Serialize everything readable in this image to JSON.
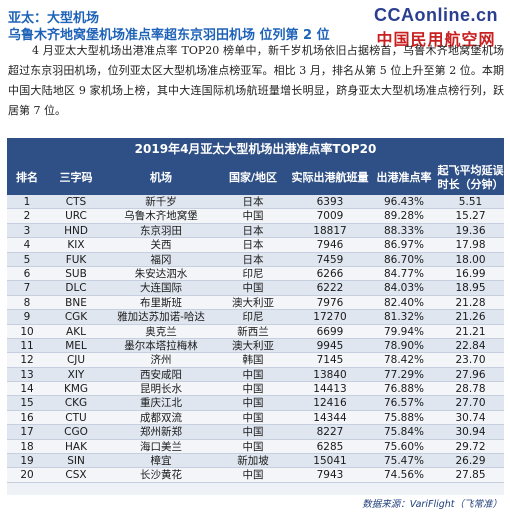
{
  "header": {
    "title_1": "亚太：大型机场",
    "title_2": "乌鲁木齐地窝堡机场准点率超东京羽田机场 位列第 2 位",
    "logo_1": "CCAonline.cn",
    "logo_2": "中国民用航空网"
  },
  "paragraph": "4 月亚太大型机场出港准点率 TOP20 榜单中，新千岁机场依旧占据榜首，乌鲁木齐地窝堡机场超过东京羽田机场，位列亚太区大型机场准点榜亚军。相比 3 月，排名从第 5 位上升至第 2 位。本期中国大陆地区 9 家机场上榜，其中大连国际机场航班量增长明显，跻身亚太大型机场准点榜行列，跃居第 7 位。",
  "table": {
    "title": "2019年4月亚太大型机场出港准点率TOP20",
    "columns": [
      "排名",
      "三字码",
      "机场",
      "国家/地区",
      "实际出港航班量",
      "出港准点率",
      "起飞平均延误时长（分钟）"
    ],
    "rows": [
      [
        "1",
        "CTS",
        "新千岁",
        "日本",
        "6393",
        "96.43%",
        "5.51"
      ],
      [
        "2",
        "URC",
        "乌鲁木齐地窝堡",
        "中国",
        "7009",
        "89.28%",
        "15.27"
      ],
      [
        "3",
        "HND",
        "东京羽田",
        "日本",
        "18817",
        "88.33%",
        "19.36"
      ],
      [
        "4",
        "KIX",
        "关西",
        "日本",
        "7946",
        "86.97%",
        "17.98"
      ],
      [
        "5",
        "FUK",
        "福冈",
        "日本",
        "7459",
        "86.70%",
        "18.00"
      ],
      [
        "6",
        "SUB",
        "朱安达泗水",
        "印尼",
        "6266",
        "84.77%",
        "16.99"
      ],
      [
        "7",
        "DLC",
        "大连国际",
        "中国",
        "6222",
        "84.03%",
        "18.95"
      ],
      [
        "8",
        "BNE",
        "布里斯班",
        "澳大利亚",
        "7976",
        "82.40%",
        "21.28"
      ],
      [
        "9",
        "CGK",
        "雅加达苏加诺-哈达",
        "印尼",
        "17270",
        "81.32%",
        "21.26"
      ],
      [
        "10",
        "AKL",
        "奥克兰",
        "新西兰",
        "6699",
        "79.94%",
        "21.21"
      ],
      [
        "11",
        "MEL",
        "墨尔本塔拉梅林",
        "澳大利亚",
        "9945",
        "78.90%",
        "22.84"
      ],
      [
        "12",
        "CJU",
        "济州",
        "韩国",
        "7145",
        "78.42%",
        "23.70"
      ],
      [
        "13",
        "XIY",
        "西安咸阳",
        "中国",
        "13840",
        "77.29%",
        "27.96"
      ],
      [
        "14",
        "KMG",
        "昆明长水",
        "中国",
        "14413",
        "76.88%",
        "28.78"
      ],
      [
        "15",
        "CKG",
        "重庆江北",
        "中国",
        "12416",
        "76.57%",
        "27.70"
      ],
      [
        "16",
        "CTU",
        "成都双流",
        "中国",
        "14344",
        "75.88%",
        "30.74"
      ],
      [
        "17",
        "CGO",
        "郑州新郑",
        "中国",
        "8227",
        "75.84%",
        "30.94"
      ],
      [
        "18",
        "HAK",
        "海口美兰",
        "中国",
        "6285",
        "75.60%",
        "29.72"
      ],
      [
        "19",
        "SIN",
        "樟宜",
        "新加坡",
        "15041",
        "75.47%",
        "26.29"
      ],
      [
        "20",
        "CSX",
        "长沙黄花",
        "中国",
        "7943",
        "74.56%",
        "27.85"
      ]
    ],
    "source": "数据来源：VariFlight（飞常准）"
  },
  "colors": {
    "title_blue": "#1f63b8",
    "table_header": "#2e5086",
    "logo_red": "#c82020",
    "logo_navy": "#2a3f8f"
  }
}
